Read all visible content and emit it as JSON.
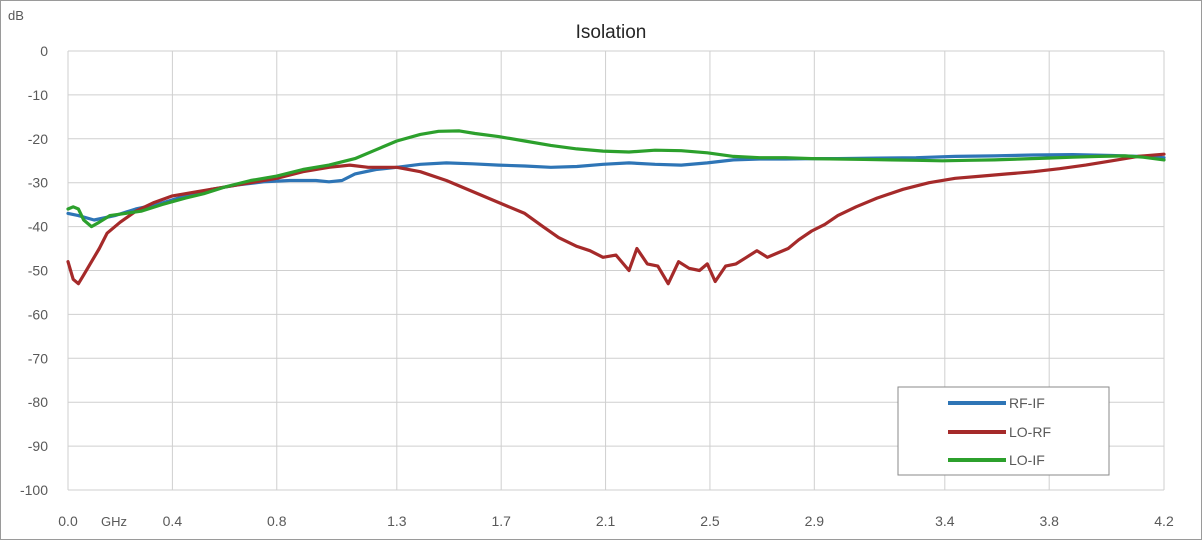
{
  "chart_data": {
    "type": "line",
    "title": "Isolation",
    "ylabel": "dB",
    "xlabel": "GHz",
    "ylim": [
      -100,
      0
    ],
    "y_ticks": [
      0,
      -10,
      -20,
      -30,
      -40,
      -50,
      -60,
      -70,
      -80,
      -90,
      -100
    ],
    "xlim": [
      0.0,
      4.2
    ],
    "x_ticks": [
      {
        "value": 0.0,
        "label": "0.0"
      },
      {
        "value": 0.4,
        "label": "0.4"
      },
      {
        "value": 0.8,
        "label": "0.8"
      },
      {
        "value": 1.26,
        "label": "1.3"
      },
      {
        "value": 1.66,
        "label": "1.7"
      },
      {
        "value": 2.06,
        "label": "2.1"
      },
      {
        "value": 2.46,
        "label": "2.5"
      },
      {
        "value": 2.86,
        "label": "2.9"
      },
      {
        "value": 3.36,
        "label": "3.4"
      },
      {
        "value": 3.76,
        "label": "3.8"
      },
      {
        "value": 4.2,
        "label": "4.2"
      }
    ],
    "grid": true,
    "legend_position": "bottom-right",
    "series": [
      {
        "name": "RF-IF",
        "color": "#2e75b6",
        "points": [
          [
            0.0,
            -37
          ],
          [
            0.04,
            -37.5
          ],
          [
            0.1,
            -38.5
          ],
          [
            0.18,
            -37.5
          ],
          [
            0.26,
            -36
          ],
          [
            0.34,
            -35
          ],
          [
            0.45,
            -33
          ],
          [
            0.55,
            -31.5
          ],
          [
            0.65,
            -30.5
          ],
          [
            0.75,
            -29.8
          ],
          [
            0.85,
            -29.5
          ],
          [
            0.95,
            -29.5
          ],
          [
            1.0,
            -29.8
          ],
          [
            1.05,
            -29.5
          ],
          [
            1.1,
            -28
          ],
          [
            1.18,
            -27
          ],
          [
            1.26,
            -26.5
          ],
          [
            1.35,
            -25.8
          ],
          [
            1.45,
            -25.5
          ],
          [
            1.55,
            -25.7
          ],
          [
            1.65,
            -26
          ],
          [
            1.75,
            -26.2
          ],
          [
            1.85,
            -26.5
          ],
          [
            1.95,
            -26.3
          ],
          [
            2.05,
            -25.8
          ],
          [
            2.15,
            -25.5
          ],
          [
            2.25,
            -25.8
          ],
          [
            2.35,
            -26
          ],
          [
            2.45,
            -25.5
          ],
          [
            2.55,
            -24.8
          ],
          [
            2.65,
            -24.6
          ],
          [
            2.75,
            -24.6
          ],
          [
            2.85,
            -24.5
          ],
          [
            2.95,
            -24.5
          ],
          [
            3.1,
            -24.4
          ],
          [
            3.25,
            -24.3
          ],
          [
            3.4,
            -24
          ],
          [
            3.55,
            -23.9
          ],
          [
            3.7,
            -23.7
          ],
          [
            3.85,
            -23.6
          ],
          [
            4.0,
            -23.8
          ],
          [
            4.1,
            -24
          ],
          [
            4.2,
            -24.3
          ]
        ]
      },
      {
        "name": "LO-RF",
        "color": "#a52a2a",
        "points": [
          [
            0.0,
            -48
          ],
          [
            0.02,
            -52
          ],
          [
            0.04,
            -53
          ],
          [
            0.06,
            -51
          ],
          [
            0.09,
            -48
          ],
          [
            0.12,
            -45
          ],
          [
            0.15,
            -41.5
          ],
          [
            0.2,
            -39
          ],
          [
            0.26,
            -36.5
          ],
          [
            0.33,
            -34.5
          ],
          [
            0.4,
            -33
          ],
          [
            0.5,
            -32
          ],
          [
            0.6,
            -31
          ],
          [
            0.7,
            -30
          ],
          [
            0.8,
            -29
          ],
          [
            0.9,
            -27.5
          ],
          [
            1.0,
            -26.5
          ],
          [
            1.08,
            -26
          ],
          [
            1.15,
            -26.5
          ],
          [
            1.26,
            -26.5
          ],
          [
            1.35,
            -27.5
          ],
          [
            1.45,
            -29.5
          ],
          [
            1.55,
            -32
          ],
          [
            1.65,
            -34.5
          ],
          [
            1.75,
            -37
          ],
          [
            1.82,
            -40
          ],
          [
            1.88,
            -42.5
          ],
          [
            1.95,
            -44.5
          ],
          [
            2.0,
            -45.5
          ],
          [
            2.05,
            -47
          ],
          [
            2.1,
            -46.5
          ],
          [
            2.15,
            -50
          ],
          [
            2.18,
            -45
          ],
          [
            2.22,
            -48.5
          ],
          [
            2.26,
            -49
          ],
          [
            2.3,
            -53
          ],
          [
            2.34,
            -48
          ],
          [
            2.38,
            -49.5
          ],
          [
            2.42,
            -50
          ],
          [
            2.45,
            -48.5
          ],
          [
            2.48,
            -52.5
          ],
          [
            2.52,
            -49
          ],
          [
            2.56,
            -48.5
          ],
          [
            2.6,
            -47
          ],
          [
            2.64,
            -45.5
          ],
          [
            2.68,
            -47
          ],
          [
            2.72,
            -46
          ],
          [
            2.76,
            -45
          ],
          [
            2.8,
            -43
          ],
          [
            2.85,
            -41
          ],
          [
            2.9,
            -39.5
          ],
          [
            2.95,
            -37.5
          ],
          [
            3.02,
            -35.5
          ],
          [
            3.1,
            -33.5
          ],
          [
            3.2,
            -31.5
          ],
          [
            3.3,
            -30
          ],
          [
            3.4,
            -29
          ],
          [
            3.5,
            -28.5
          ],
          [
            3.6,
            -28
          ],
          [
            3.7,
            -27.5
          ],
          [
            3.8,
            -26.8
          ],
          [
            3.9,
            -26
          ],
          [
            4.0,
            -25
          ],
          [
            4.1,
            -24
          ],
          [
            4.2,
            -23.5
          ]
        ]
      },
      {
        "name": "LO-IF",
        "color": "#2ca02c",
        "points": [
          [
            0.0,
            -36
          ],
          [
            0.02,
            -35.5
          ],
          [
            0.04,
            -36
          ],
          [
            0.06,
            -38.5
          ],
          [
            0.09,
            -40
          ],
          [
            0.12,
            -39
          ],
          [
            0.16,
            -37.5
          ],
          [
            0.22,
            -37
          ],
          [
            0.28,
            -36.5
          ],
          [
            0.36,
            -35
          ],
          [
            0.45,
            -33.5
          ],
          [
            0.52,
            -32.5
          ],
          [
            0.6,
            -31
          ],
          [
            0.7,
            -29.5
          ],
          [
            0.8,
            -28.5
          ],
          [
            0.9,
            -27
          ],
          [
            1.0,
            -26
          ],
          [
            1.1,
            -24.5
          ],
          [
            1.18,
            -22.5
          ],
          [
            1.26,
            -20.5
          ],
          [
            1.35,
            -19
          ],
          [
            1.42,
            -18.3
          ],
          [
            1.5,
            -18.2
          ],
          [
            1.56,
            -18.8
          ],
          [
            1.65,
            -19.5
          ],
          [
            1.75,
            -20.5
          ],
          [
            1.85,
            -21.5
          ],
          [
            1.95,
            -22.3
          ],
          [
            2.05,
            -22.8
          ],
          [
            2.15,
            -23
          ],
          [
            2.25,
            -22.6
          ],
          [
            2.35,
            -22.7
          ],
          [
            2.45,
            -23.2
          ],
          [
            2.55,
            -24
          ],
          [
            2.65,
            -24.3
          ],
          [
            2.75,
            -24.3
          ],
          [
            2.85,
            -24.5
          ],
          [
            2.95,
            -24.6
          ],
          [
            3.05,
            -24.7
          ],
          [
            3.15,
            -24.8
          ],
          [
            3.25,
            -24.9
          ],
          [
            3.35,
            -25
          ],
          [
            3.45,
            -24.9
          ],
          [
            3.55,
            -24.8
          ],
          [
            3.65,
            -24.6
          ],
          [
            3.75,
            -24.4
          ],
          [
            3.85,
            -24.2
          ],
          [
            3.95,
            -24
          ],
          [
            4.05,
            -23.9
          ],
          [
            4.12,
            -24.2
          ],
          [
            4.2,
            -24.8
          ]
        ]
      }
    ]
  }
}
